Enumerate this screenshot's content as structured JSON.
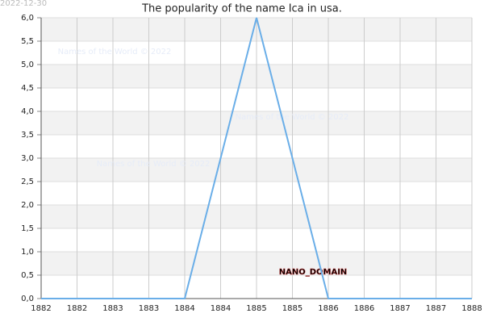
{
  "chart_data": {
    "type": "line",
    "title": "The popularity of the name Ica in usa.",
    "date": "2022-12-30",
    "annotations": [
      "Names of the World © 2022",
      "Names of the World © 2022",
      "Names of the World © 2022",
      "NANO_DOMAIN"
    ],
    "x": [
      1882,
      1883,
      1884,
      1885,
      1886,
      1887,
      1888
    ],
    "series": [
      {
        "name": "Ica",
        "color": "#6aaee8",
        "values": [
          0,
          0,
          0,
          6,
          0,
          0,
          0
        ]
      }
    ],
    "xlim": [
      1882,
      1888
    ],
    "xticks": [
      1882,
      {
        "value": 1882.5,
        "label": "1882"
      },
      1883,
      {
        "value": 1883.5,
        "label": "1883"
      },
      1884,
      {
        "value": 1884.5,
        "label": "1884"
      },
      1885,
      {
        "value": 1885.5,
        "label": "1885"
      },
      1886,
      {
        "value": 1886.5,
        "label": "1886"
      },
      1887,
      {
        "value": 1887.5,
        "label": "1887"
      },
      1888
    ],
    "ylim": [
      0,
      6
    ],
    "yticks": [
      {
        "value": 0,
        "label": "0,0"
      },
      {
        "value": 0.5,
        "label": "0,5"
      },
      {
        "value": 1,
        "label": "1,0"
      },
      {
        "value": 1.5,
        "label": "1,5"
      },
      {
        "value": 2,
        "label": "2,0"
      },
      {
        "value": 2.5,
        "label": "2,5"
      },
      {
        "value": 3,
        "label": "3,0"
      },
      {
        "value": 3.5,
        "label": "3,5"
      },
      {
        "value": 4,
        "label": "4,0"
      },
      {
        "value": 4.5,
        "label": "4,5"
      },
      {
        "value": 5,
        "label": "5,0"
      },
      {
        "value": 5.5,
        "label": "5,5"
      },
      {
        "value": 6,
        "label": "6,0"
      }
    ],
    "grid": true,
    "bands": true
  }
}
